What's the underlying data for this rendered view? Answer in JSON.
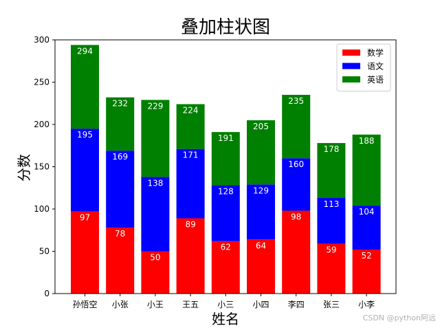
{
  "chart_data": {
    "type": "bar",
    "stacked": true,
    "title": "叠加柱状图",
    "xlabel": "姓名",
    "ylabel": "分数",
    "categories": [
      "孙悟空",
      "小张",
      "小王",
      "王五",
      "小三",
      "小四",
      "李四",
      "张三",
      "小李"
    ],
    "series": [
      {
        "name": "数学",
        "color": "#ff0000",
        "values": [
          97,
          78,
          50,
          89,
          62,
          64,
          98,
          59,
          52
        ],
        "cumulative_labels": [
          "97",
          "78",
          "50",
          "89",
          "62",
          "64",
          "98",
          "59",
          "52"
        ]
      },
      {
        "name": "语文",
        "color": "#0000ff",
        "values": [
          98,
          91,
          88,
          82,
          66,
          65,
          62,
          54,
          52
        ],
        "cumulative_labels": [
          "195",
          "169",
          "138",
          "171",
          "128",
          "129",
          "160",
          "113",
          "104"
        ]
      },
      {
        "name": "英语",
        "color": "#008000",
        "values": [
          99,
          63,
          91,
          53,
          63,
          76,
          75,
          65,
          84
        ],
        "cumulative_labels": [
          "294",
          "232",
          "229",
          "224",
          "191",
          "205",
          "235",
          "178",
          "188"
        ]
      }
    ],
    "ylim": [
      0,
      300
    ],
    "yticks": [
      "0",
      "50",
      "100",
      "150",
      "200",
      "250",
      "300"
    ],
    "grid": false,
    "legend_position": "top-right"
  },
  "watermark": "CSDN @python阿远"
}
